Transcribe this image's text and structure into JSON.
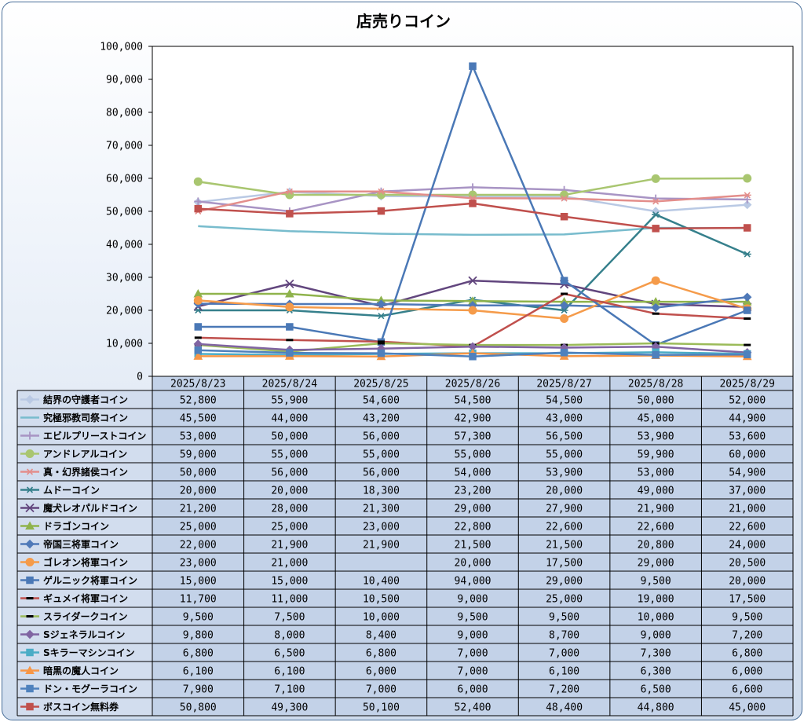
{
  "chart_data": {
    "type": "line",
    "title": "店売りコイン",
    "xlabel": "",
    "ylabel": "",
    "ylim": [
      0,
      100000
    ],
    "ytick_labels": [
      "0",
      "10,000",
      "20,000",
      "30,000",
      "40,000",
      "50,000",
      "60,000",
      "70,000",
      "80,000",
      "90,000",
      "100,000"
    ],
    "grid": false,
    "legend": "data-table",
    "categories": [
      "2025/8/23",
      "2025/8/24",
      "2025/8/25",
      "2025/8/26",
      "2025/8/27",
      "2025/8/28",
      "2025/8/29"
    ],
    "series": [
      {
        "name": "結界の守護者コイン",
        "color": "#b9c9e4",
        "marker": "diamond",
        "values": [
          52800,
          55900,
          54600,
          54500,
          54500,
          50000,
          52000
        ],
        "labels": [
          "52,800",
          "55,900",
          "54,600",
          "54,500",
          "54,500",
          "50,000",
          "52,000"
        ]
      },
      {
        "name": "究極邪教司祭コイン",
        "color": "#78bccd",
        "marker": "none",
        "values": [
          45500,
          44000,
          43200,
          42900,
          43000,
          45000,
          44900
        ],
        "labels": [
          "45,500",
          "44,000",
          "43,200",
          "42,900",
          "43,000",
          "45,000",
          "44,900"
        ]
      },
      {
        "name": "エビルプリーストコイン",
        "color": "#a894c4",
        "marker": "plus",
        "values": [
          53000,
          50000,
          56000,
          57300,
          56500,
          53900,
          53600
        ],
        "labels": [
          "53,000",
          "50,000",
          "56,000",
          "57,300",
          "56,500",
          "53,900",
          "53,600"
        ]
      },
      {
        "name": "アンドレアルコイン",
        "color": "#a9c670",
        "marker": "circle",
        "values": [
          59000,
          55000,
          55000,
          55000,
          55000,
          59900,
          60000
        ],
        "labels": [
          "59,000",
          "55,000",
          "55,000",
          "55,000",
          "55,000",
          "59,900",
          "60,000"
        ]
      },
      {
        "name": "真・幻界諸侯コイン",
        "color": "#e38e8b",
        "marker": "star",
        "values": [
          50000,
          56000,
          56000,
          54000,
          53900,
          53000,
          54900
        ],
        "labels": [
          "50,000",
          "56,000",
          "56,000",
          "54,000",
          "53,900",
          "53,000",
          "54,900"
        ]
      },
      {
        "name": "ムドーコイン",
        "color": "#36808c",
        "marker": "star",
        "values": [
          20000,
          20000,
          18300,
          23200,
          20000,
          49000,
          37000
        ],
        "labels": [
          "20,000",
          "20,000",
          "18,300",
          "23,200",
          "20,000",
          "49,000",
          "37,000"
        ]
      },
      {
        "name": "魔犬レオパルドコイン",
        "color": "#62467e",
        "marker": "x",
        "values": [
          21200,
          28000,
          21300,
          29000,
          27900,
          21900,
          21000
        ],
        "labels": [
          "21,200",
          "28,000",
          "21,300",
          "29,000",
          "27,900",
          "21,900",
          "21,000"
        ]
      },
      {
        "name": "ドラゴンコイン",
        "color": "#8fb34c",
        "marker": "triangle",
        "values": [
          25000,
          25000,
          23000,
          22800,
          22600,
          22600,
          22600
        ],
        "labels": [
          "25,000",
          "25,000",
          "23,000",
          "22,800",
          "22,600",
          "22,600",
          "22,600"
        ]
      },
      {
        "name": "帝国三将軍コイン",
        "color": "#4f79b8",
        "marker": "diamond",
        "values": [
          22000,
          21900,
          21900,
          21500,
          21500,
          20800,
          24000
        ],
        "labels": [
          "22,000",
          "21,900",
          "21,900",
          "21,500",
          "21,500",
          "20,800",
          "24,000"
        ]
      },
      {
        "name": "ゴレオン将軍コイン",
        "color": "#f59b4a",
        "marker": "circle",
        "values": [
          23000,
          21000,
          null,
          20000,
          17500,
          29000,
          20500
        ],
        "labels": [
          "23,000",
          "21,000",
          "",
          "20,000",
          "17,500",
          "29,000",
          "20,500"
        ]
      },
      {
        "name": "ゲルニック将軍コイン",
        "color": "#4a78b6",
        "marker": "square",
        "values": [
          15000,
          15000,
          10400,
          94000,
          29000,
          9500,
          20000
        ],
        "labels": [
          "15,000",
          "15,000",
          "10,400",
          "94,000",
          "29,000",
          "9,500",
          "20,000"
        ]
      },
      {
        "name": "ギュメイ将軍コイン",
        "color": "#c0504d",
        "marker": "dash",
        "values": [
          11700,
          11000,
          10500,
          9000,
          25000,
          19000,
          17500
        ],
        "labels": [
          "11,700",
          "11,000",
          "10,500",
          "9,000",
          "25,000",
          "19,000",
          "17,500"
        ]
      },
      {
        "name": "スライダークコイン",
        "color": "#9bbb59",
        "marker": "dash",
        "values": [
          9500,
          7500,
          10000,
          9500,
          9500,
          10000,
          9500
        ],
        "labels": [
          "9,500",
          "7,500",
          "10,000",
          "9,500",
          "9,500",
          "10,000",
          "9,500"
        ]
      },
      {
        "name": "Sジェネラルコイン",
        "color": "#8064a2",
        "marker": "diamond",
        "values": [
          9800,
          8000,
          8400,
          9000,
          8700,
          9000,
          7200
        ],
        "labels": [
          "9,800",
          "8,000",
          "8,400",
          "9,000",
          "8,700",
          "9,000",
          "7,200"
        ]
      },
      {
        "name": "Sキラーマシンコイン",
        "color": "#4bacc6",
        "marker": "square",
        "values": [
          6800,
          6500,
          6800,
          7000,
          7000,
          7300,
          6800
        ],
        "labels": [
          "6,800",
          "6,500",
          "6,800",
          "7,000",
          "7,000",
          "7,300",
          "6,800"
        ]
      },
      {
        "name": "暗黒の魔人コイン",
        "color": "#f79646",
        "marker": "triangle",
        "values": [
          6100,
          6100,
          6000,
          7000,
          6100,
          6300,
          6000
        ],
        "labels": [
          "6,100",
          "6,100",
          "6,000",
          "7,000",
          "6,100",
          "6,300",
          "6,000"
        ]
      },
      {
        "name": "ドン・モグーラコイン",
        "color": "#4f81bd",
        "marker": "square",
        "values": [
          7900,
          7100,
          7000,
          6000,
          7200,
          6500,
          6600
        ],
        "labels": [
          "7,900",
          "7,100",
          "7,000",
          "6,000",
          "7,200",
          "6,500",
          "6,600"
        ]
      },
      {
        "name": "ボスコイン無料券",
        "color": "#c0504d",
        "marker": "square",
        "values": [
          50800,
          49300,
          50100,
          52400,
          48400,
          44800,
          45000
        ],
        "labels": [
          "50,800",
          "49,300",
          "50,100",
          "52,400",
          "48,400",
          "44,800",
          "45,000"
        ]
      }
    ]
  }
}
